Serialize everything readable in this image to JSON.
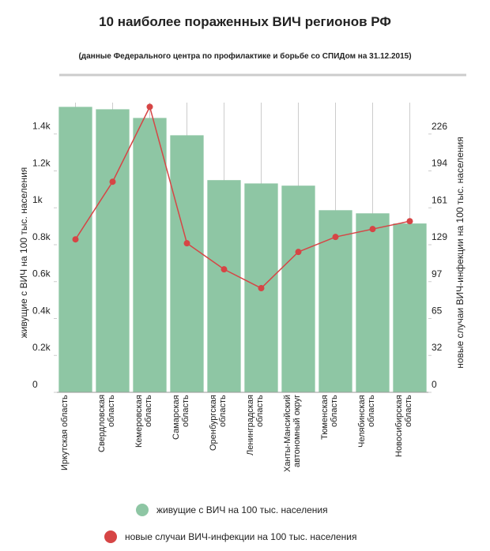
{
  "chart_data": {
    "type": "bar",
    "title": "10 наиболее пораженных ВИЧ регионов РФ",
    "subtitle": "(данные Федерального центра по профилактике и борьбе со СПИДом на 31.12.2015)",
    "y_label": "живущие с ВИЧ на 100 тыс. населения",
    "y2_label": "новые случаи ВИЧ-инфекции на 100 тыс. населения",
    "categories": [
      "Иркутская область",
      "Свердловская область",
      "Кемеровская область",
      "Самарская область",
      "Оренбургская область",
      "Ленинградская область",
      "Ханты-Мансийский автономный округ",
      "Тюменская область",
      "Челябинская область",
      "Новосибирская область"
    ],
    "series": [
      {
        "name": "живущие с ВИЧ на 100 тыс. населения",
        "type": "bar",
        "color": "#8ec6a4",
        "values": [
          1547,
          1534,
          1487,
          1393,
          1150,
          1132,
          1120,
          987,
          970,
          915
        ]
      },
      {
        "name": "новые случаи ВИЧ-инфекции на 100 тыс. населения",
        "type": "line",
        "axis": "y2",
        "color": "#d64545",
        "values": [
          133.8,
          184.2,
          249.7,
          130.4,
          107.6,
          91.1,
          122.8,
          135.9,
          142.8,
          149.7
        ]
      }
    ],
    "ylim": [
      0,
      1570
    ],
    "yticks": [
      0,
      {
        "value": 200,
        "label": "0.2k"
      },
      {
        "value": 400,
        "label": "0.4k"
      },
      {
        "value": 600,
        "label": "0.6k"
      },
      {
        "value": 800,
        "label": "0.8k"
      },
      {
        "value": 1000,
        "label": "1k"
      },
      {
        "value": 1200,
        "label": "1.2k"
      },
      {
        "value": 1400,
        "label": "1.4k"
      }
    ],
    "y2lim": [
      0,
      253.4
    ],
    "y2ticks": [
      0,
      {
        "value": 32.28,
        "label": "32"
      },
      {
        "value": 64.56,
        "label": "65"
      },
      {
        "value": 96.83,
        "label": "97"
      },
      {
        "value": 129.11,
        "label": "129"
      },
      {
        "value": 161.39,
        "label": "161"
      },
      {
        "value": 193.67,
        "label": "194"
      },
      {
        "value": 225.94,
        "label": "226"
      }
    ]
  }
}
